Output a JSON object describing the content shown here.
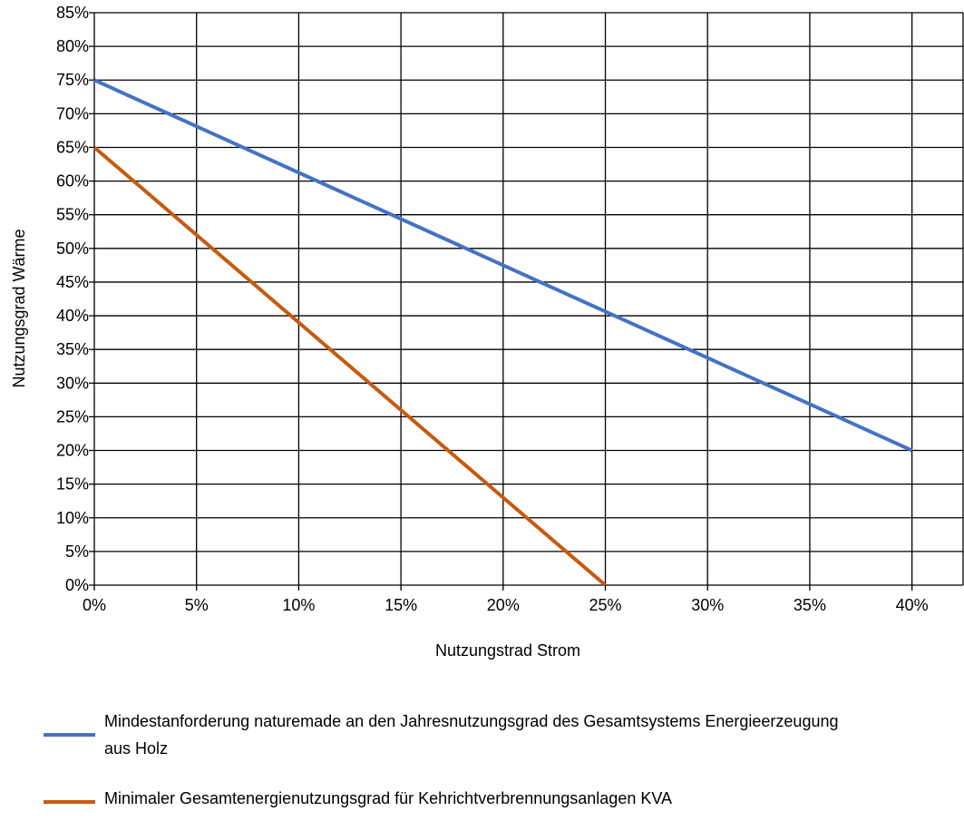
{
  "chart_data": {
    "type": "line",
    "xlabel": "Nutzungstrad Strom",
    "ylabel": "Nutzungsgrad Wärme",
    "xlim": [
      0,
      0.425
    ],
    "ylim": [
      0,
      0.85
    ],
    "x_ticks": [
      "0%",
      "5%",
      "10%",
      "15%",
      "20%",
      "25%",
      "30%",
      "35%",
      "40%"
    ],
    "x_tick_values": [
      0,
      0.05,
      0.1,
      0.15,
      0.2,
      0.25,
      0.3,
      0.35,
      0.4
    ],
    "y_ticks": [
      "0%",
      "5%",
      "10%",
      "15%",
      "20%",
      "25%",
      "30%",
      "35%",
      "40%",
      "45%",
      "50%",
      "55%",
      "60%",
      "65%",
      "70%",
      "75%",
      "80%",
      "85%"
    ],
    "y_tick_values": [
      0,
      0.05,
      0.1,
      0.15,
      0.2,
      0.25,
      0.3,
      0.35,
      0.4,
      0.45,
      0.5,
      0.55,
      0.6,
      0.65,
      0.7,
      0.75,
      0.8,
      0.85
    ],
    "x_gridlines": [
      0,
      0.05,
      0.1,
      0.15,
      0.2,
      0.25,
      0.3,
      0.35,
      0.4,
      0.425
    ],
    "grid": true,
    "legend_position": "bottom",
    "series": [
      {
        "name": "Mindestanforderung naturemade an den Jahresnutzungsgrad des Gesamtsystems Energieerzeugung aus Holz",
        "color": "#4472C4",
        "x": [
          0,
          0.4
        ],
        "y": [
          0.75,
          0.2
        ]
      },
      {
        "name": "Minimaler Gesamtenergienutzungsgrad für Kehrichtverbrennungsanlagen KVA",
        "color": "#C55A11",
        "x": [
          0,
          0.25
        ],
        "y": [
          0.65,
          0.0
        ]
      }
    ]
  }
}
